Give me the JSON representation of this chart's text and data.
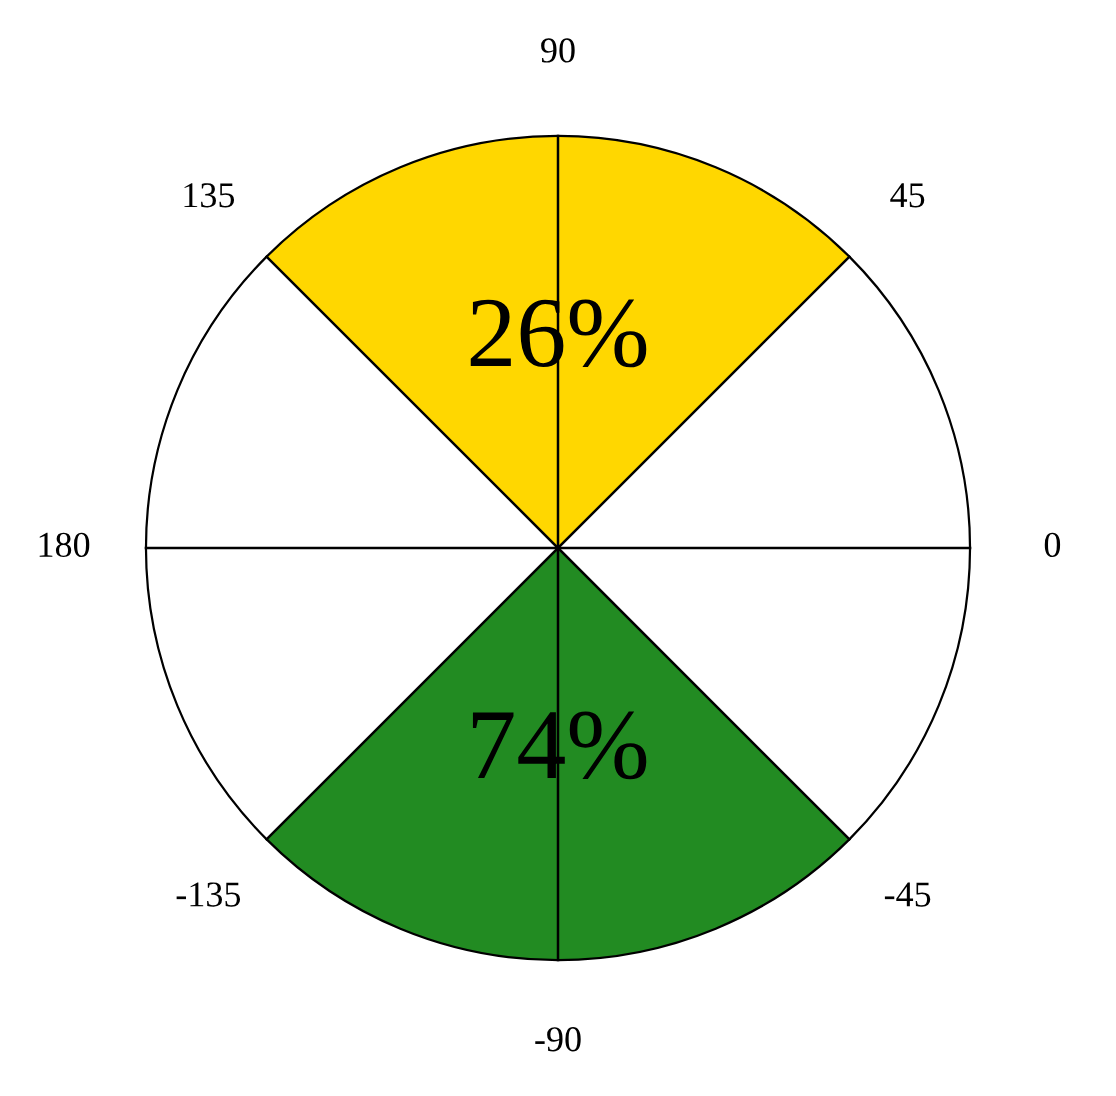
{
  "chart_data": {
    "type": "other",
    "categories": [
      null,
      null
    ],
    "values": [
      26,
      74
    ],
    "value_labels": [
      "26%",
      "74%"
    ],
    "colors": [
      "#ffd700",
      "#228b22"
    ],
    "annotations": [
      "0",
      "45",
      "90",
      "135",
      "180",
      "-135",
      "-90",
      "-45"
    ]
  }
}
